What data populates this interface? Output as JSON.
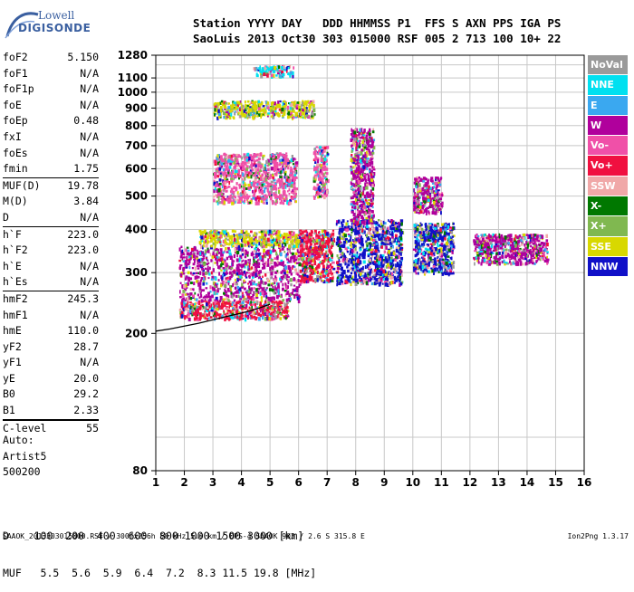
{
  "logo": {
    "line1": "Lowell",
    "line2": "DIGISONDE"
  },
  "header": {
    "line1": "Station YYYY DAY   DDD HHMMSS P1  FFS S AXN PPS IGA PS",
    "line2": "SaoLuis 2013 Oct30 303 015000 RSF 005 2 713 100 10+ 22"
  },
  "params": [
    {
      "group": 1,
      "name": "foF2",
      "value": "5.150"
    },
    {
      "group": 1,
      "name": "foF1",
      "value": "N/A"
    },
    {
      "group": 1,
      "name": "foF1p",
      "value": "N/A"
    },
    {
      "group": 1,
      "name": "foE",
      "value": "N/A"
    },
    {
      "group": 1,
      "name": "foEp",
      "value": "0.48"
    },
    {
      "group": 1,
      "name": "fxI",
      "value": "N/A"
    },
    {
      "group": 1,
      "name": "foEs",
      "value": "N/A"
    },
    {
      "group": 1,
      "name": "fmin",
      "value": "1.75"
    },
    {
      "group": 2,
      "name": "MUF(D)",
      "value": "19.78"
    },
    {
      "group": 2,
      "name": "M(D)",
      "value": "3.84"
    },
    {
      "group": 2,
      "name": "D",
      "value": "N/A"
    },
    {
      "group": 3,
      "name": "h`F",
      "value": "223.0"
    },
    {
      "group": 3,
      "name": "h`F2",
      "value": "223.0"
    },
    {
      "group": 3,
      "name": "h`E",
      "value": "N/A"
    },
    {
      "group": 3,
      "name": "h`Es",
      "value": "N/A"
    },
    {
      "group": 4,
      "name": "hmF2",
      "value": "245.3"
    },
    {
      "group": 4,
      "name": "hmF1",
      "value": "N/A"
    },
    {
      "group": 4,
      "name": "hmE",
      "value": "110.0"
    },
    {
      "group": 4,
      "name": "yF2",
      "value": "28.7"
    },
    {
      "group": 4,
      "name": "yF1",
      "value": "N/A"
    },
    {
      "group": 4,
      "name": "yE",
      "value": "20.0"
    },
    {
      "group": 4,
      "name": "B0",
      "value": "29.2"
    },
    {
      "group": 4,
      "name": "B1",
      "value": "2.33"
    },
    {
      "group": 5,
      "name": "C-level",
      "value": "55"
    }
  ],
  "auto": {
    "line1": "Auto:",
    "line2": "Artist5",
    "line3": "500200"
  },
  "legend": [
    {
      "label": "NoVal",
      "color": "#9a9a9a"
    },
    {
      "label": "NNE",
      "color": "#00e0f0"
    },
    {
      "label": "E",
      "color": "#3aa8f0"
    },
    {
      "label": "W",
      "color": "#b0009c"
    },
    {
      "label": "Vo-",
      "color": "#f050a8"
    },
    {
      "label": "Vo+",
      "color": "#f01040"
    },
    {
      "label": "SSW",
      "color": "#f0a8a8"
    },
    {
      "label": "X-",
      "color": "#007800"
    },
    {
      "label": "X+",
      "color": "#80b850"
    },
    {
      "label": "SSE",
      "color": "#d8d800"
    },
    {
      "label": "NNW",
      "color": "#1010c8"
    }
  ],
  "dmuf": {
    "d_line": "D    100  200  400  600  800 1000 1500 3000 [km]",
    "muf_line": "MUF   5.5  5.6  5.9  6.4  7.2  8.3 11.5 19.8 [MHz]"
  },
  "footer": {
    "left": "SAAOK_2013303015000.RSF / 300fx256h 50 kHz 5.0 km / DPS-4 SAAOK 903 / 2.6 S 315.8 E",
    "right": "Ion2Png 1.3.17"
  },
  "chart_data": {
    "type": "scatter",
    "title": "",
    "xlabel": "",
    "ylabel": "",
    "xlim": [
      1,
      16
    ],
    "ylim": [
      80,
      1280
    ],
    "y_scale": "log",
    "grid": true,
    "x_ticks": [
      1,
      2,
      3,
      4,
      5,
      6,
      7,
      8,
      9,
      10,
      11,
      12,
      13,
      14,
      15,
      16
    ],
    "y_ticks": [
      80,
      200,
      300,
      400,
      500,
      600,
      700,
      800,
      900,
      1000,
      1100,
      1280
    ],
    "trace": {
      "name": "",
      "x": [
        1.0,
        1.5,
        2.0,
        2.5,
        3.0,
        3.5,
        4.0,
        4.5,
        5.0
      ],
      "y": [
        203,
        206,
        210,
        214,
        219,
        224,
        229,
        235,
        243
      ]
    },
    "echo_regions": [
      {
        "x": [
          1.8,
          5.6
        ],
        "y": [
          222,
          250
        ],
        "dominant": "Vo+"
      },
      {
        "x": [
          1.8,
          6.0
        ],
        "y": [
          250,
          360
        ],
        "dominant": "W"
      },
      {
        "x": [
          2.5,
          6.0
        ],
        "y": [
          360,
          400
        ],
        "dominant": "SSE"
      },
      {
        "x": [
          6.0,
          7.2
        ],
        "y": [
          285,
          400
        ],
        "dominant": "Vo+"
      },
      {
        "x": [
          7.3,
          9.6
        ],
        "y": [
          280,
          430
        ],
        "dominant": "NNW"
      },
      {
        "x": [
          10.0,
          11.4
        ],
        "y": [
          300,
          420
        ],
        "dominant": "NNW"
      },
      {
        "x": [
          12.1,
          14.7
        ],
        "y": [
          320,
          390
        ],
        "dominant": "W"
      },
      {
        "x": [
          3.0,
          5.9
        ],
        "y": [
          480,
          670
        ],
        "dominant": "Vo-"
      },
      {
        "x": [
          6.5,
          7.0
        ],
        "y": [
          500,
          700
        ],
        "dominant": "Vo-"
      },
      {
        "x": [
          7.8,
          8.6
        ],
        "y": [
          420,
          790
        ],
        "dominant": "W"
      },
      {
        "x": [
          10.0,
          11.0
        ],
        "y": [
          450,
          570
        ],
        "dominant": "W"
      },
      {
        "x": [
          3.0,
          6.5
        ],
        "y": [
          850,
          950
        ],
        "dominant": "SSE"
      },
      {
        "x": [
          4.4,
          5.8
        ],
        "y": [
          1120,
          1200
        ],
        "dominant": "NNE"
      }
    ]
  }
}
